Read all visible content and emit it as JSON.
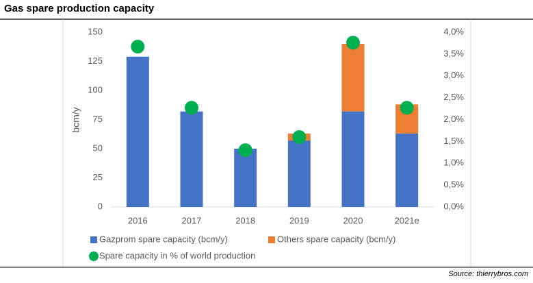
{
  "chart_data": {
    "type": "bar",
    "title": "Gas spare production capacity",
    "source": "Source: thierrybros.com",
    "y_label": "bcm/y",
    "categories": [
      "2016",
      "2017",
      "2018",
      "2019",
      "2020",
      "2021e"
    ],
    "series": [
      {
        "name": "Gazprom spare capacity (bcm/y)",
        "color": "#4472c4",
        "values": [
          129,
          82,
          50,
          57,
          82,
          63
        ]
      },
      {
        "name": "Others spare capacity (bcm/y)",
        "color": "#ed7d31",
        "values": [
          0,
          0,
          0,
          6,
          58,
          25
        ]
      },
      {
        "name": "Spare capacity in % of world production",
        "color": "#00b050",
        "axis": "y2",
        "marker": "circle",
        "values": [
          3.67,
          2.27,
          1.3,
          1.6,
          3.76,
          2.27
        ]
      }
    ],
    "ylim": [
      0,
      150
    ],
    "yticks": [
      0,
      25,
      50,
      75,
      100,
      125,
      150
    ],
    "y2lim": [
      0,
      4
    ],
    "y2ticks": [
      {
        "value": 0,
        "label": "0,0%"
      },
      {
        "value": 0.5,
        "label": "0,5%"
      },
      {
        "value": 1,
        "label": "1,0%"
      },
      {
        "value": 1.5,
        "label": "1,5%"
      },
      {
        "value": 2,
        "label": "2,0%"
      },
      {
        "value": 2.5,
        "label": "2,5%"
      },
      {
        "value": 3,
        "label": "3,0%"
      },
      {
        "value": 3.5,
        "label": "3,5%"
      },
      {
        "value": 4,
        "label": "4,0%"
      }
    ],
    "grid": false
  }
}
